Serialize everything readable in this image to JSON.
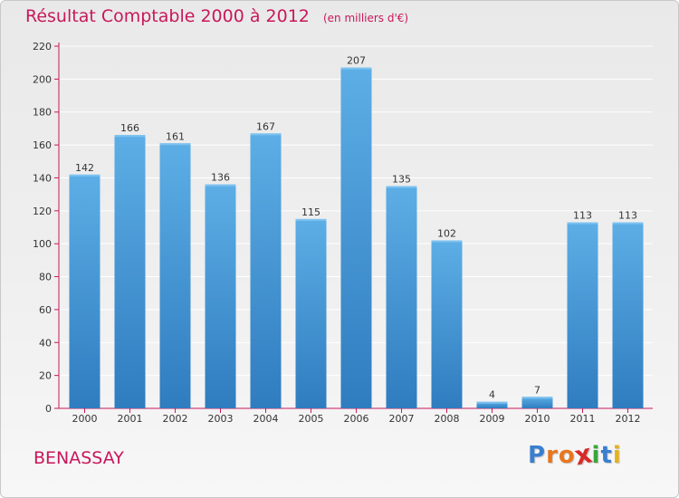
{
  "title": "Résultat Comptable 2000 à 2012",
  "unit": "(en milliers d'€)",
  "commune": "BENASSAY",
  "brand": {
    "name": "Proxiti",
    "letters": [
      "P",
      "r",
      "o",
      "x",
      "i",
      "t",
      "i"
    ],
    "colors": [
      "#3a7fcf",
      "#e8761e",
      "#e8761e",
      "#d72a2a",
      "#3aa63a",
      "#3a7fcf",
      "#e6b21a"
    ]
  },
  "colors": {
    "title": "#c8185a",
    "bar_top": "#5daee6",
    "bar_bottom": "#2f7cbf",
    "axis": "#c8185a",
    "grid": "#ffffff"
  },
  "chart_data": {
    "type": "bar",
    "title": "Résultat Comptable 2000 à 2012",
    "xlabel": "",
    "ylabel": "(en milliers d'€)",
    "categories": [
      "2000",
      "2001",
      "2002",
      "2003",
      "2004",
      "2005",
      "2006",
      "2007",
      "2008",
      "2009",
      "2010",
      "2011",
      "2012"
    ],
    "values": [
      142,
      166,
      161,
      136,
      167,
      115,
      207,
      135,
      102,
      4,
      7,
      113,
      113
    ],
    "ylim": [
      0,
      220
    ],
    "yticks": [
      0,
      20,
      40,
      60,
      80,
      100,
      120,
      140,
      160,
      180,
      200,
      220
    ],
    "grid": true
  }
}
